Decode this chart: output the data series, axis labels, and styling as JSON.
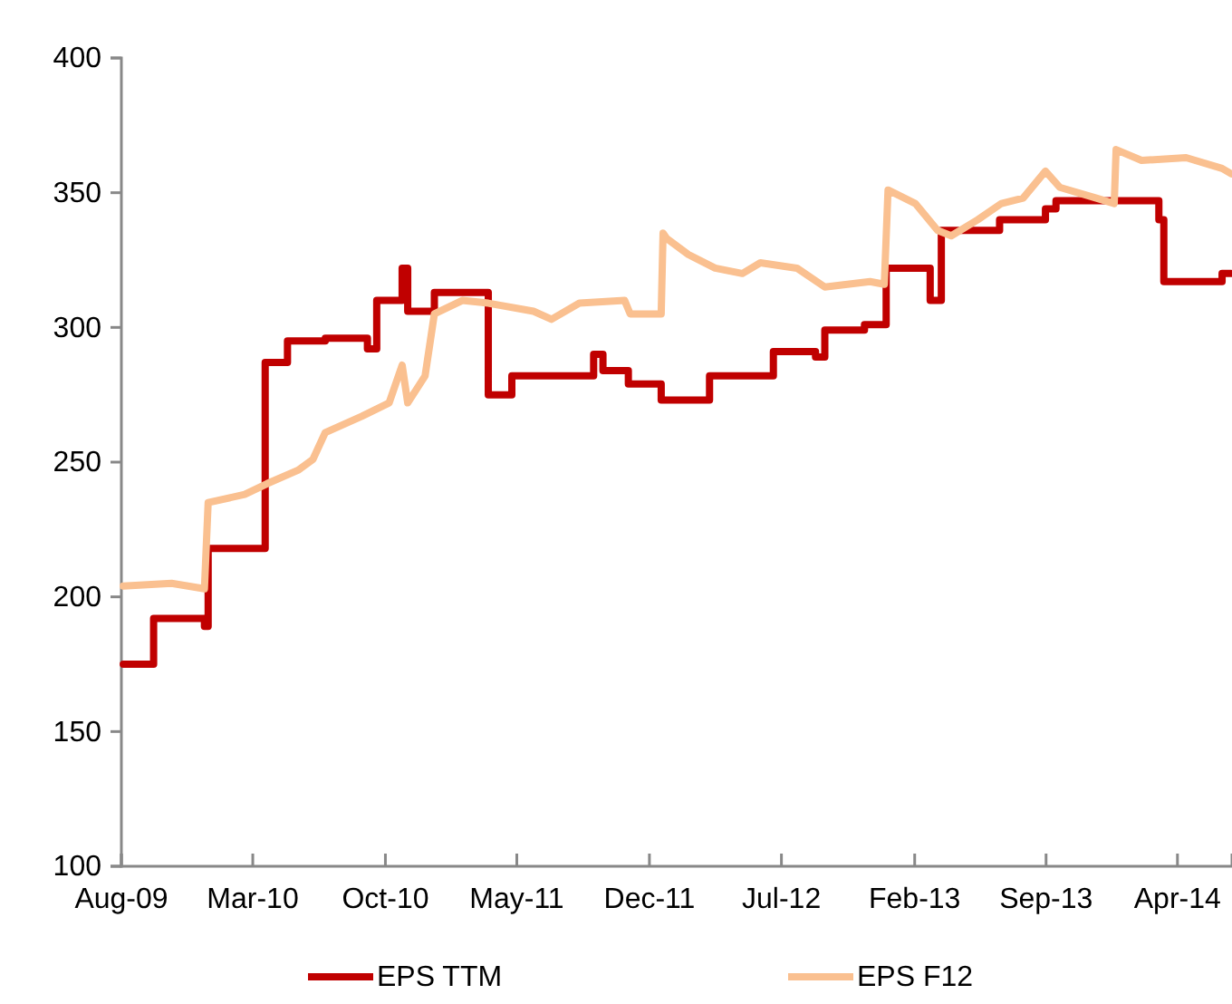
{
  "chart_data": {
    "type": "line",
    "xlim": [
      "2009-08-01",
      "2014-06-28"
    ],
    "ylim": [
      100,
      400
    ],
    "yticks": [
      100,
      150,
      200,
      250,
      300,
      350,
      400
    ],
    "xticks": [
      {
        "value": "2009-08-01",
        "label": "Aug-09"
      },
      {
        "value": "2010-03-01",
        "label": "Mar-10"
      },
      {
        "value": "2010-10-01",
        "label": "Oct-10"
      },
      {
        "value": "2011-05-01",
        "label": "May-11"
      },
      {
        "value": "2011-12-01",
        "label": "Dec-11"
      },
      {
        "value": "2012-07-01",
        "label": "Jul-12"
      },
      {
        "value": "2013-02-01",
        "label": "Feb-13"
      },
      {
        "value": "2013-09-01",
        "label": "Sep-13"
      },
      {
        "value": "2014-04-01",
        "label": "Apr-14"
      }
    ],
    "grid": false,
    "legend": "bottom",
    "line_style": "solid",
    "marker": "none",
    "series": [
      {
        "name": "EPS TTM",
        "type": "step",
        "color": "#c00000",
        "x": [
          "2009-08-04",
          "2009-09-22",
          "2009-12-13",
          "2009-12-19",
          "2010-03-21",
          "2010-04-26",
          "2010-06-26",
          "2010-09-02",
          "2010-09-17",
          "2010-10-28",
          "2010-11-06",
          "2010-12-19",
          "2011-03-16",
          "2011-04-23",
          "2011-09-02",
          "2011-09-17",
          "2011-10-28",
          "2011-12-20",
          "2012-03-07",
          "2012-06-18",
          "2012-08-25",
          "2012-09-09",
          "2012-11-12",
          "2012-12-17",
          "2013-02-26",
          "2013-03-16",
          "2013-06-18",
          "2013-08-31",
          "2013-09-17",
          "2014-03-02",
          "2014-03-10",
          "2014-06-12",
          "2014-06-27"
        ],
        "values": [
          175,
          192,
          189,
          218,
          287,
          295,
          296,
          292,
          310,
          322,
          306,
          313,
          275,
          282,
          290,
          284,
          279,
          273,
          282,
          291,
          289,
          299,
          301,
          322,
          310,
          336,
          340,
          344,
          347,
          340,
          317,
          320,
          320
        ]
      },
      {
        "name": "EPS F12",
        "color": "#fac090",
        "x": [
          "2009-08-04",
          "2009-10-21",
          "2009-12-13",
          "2009-12-19",
          "2010-02-16",
          "2010-03-24",
          "2010-05-13",
          "2010-06-06",
          "2010-06-26",
          "2010-08-24",
          "2010-10-07",
          "2010-10-28",
          "2010-11-06",
          "2010-12-04",
          "2010-12-19",
          "2011-02-02",
          "2011-03-16",
          "2011-05-28",
          "2011-06-26",
          "2011-08-10",
          "2011-10-22",
          "2011-10-31",
          "2011-12-20",
          "2011-12-23",
          "2011-12-29",
          "2012-02-02",
          "2012-03-16",
          "2012-04-29",
          "2012-05-28",
          "2012-07-26",
          "2012-09-09",
          "2012-11-21",
          "2012-12-14",
          "2012-12-20",
          "2013-02-02",
          "2013-03-10",
          "2013-04-01",
          "2013-05-14",
          "2013-06-21",
          "2013-07-26",
          "2013-08-31",
          "2013-09-23",
          "2013-11-21",
          "2013-12-20",
          "2013-12-23",
          "2014-02-02",
          "2014-04-15",
          "2014-06-12",
          "2014-06-27"
        ],
        "values": [
          204,
          205,
          203,
          235,
          238,
          242,
          247,
          251,
          261,
          267,
          272,
          286,
          272,
          282,
          305,
          310,
          309,
          306,
          303,
          309,
          310,
          305,
          305,
          335,
          333,
          327,
          322,
          320,
          324,
          322,
          315,
          317,
          316,
          351,
          346,
          336,
          334,
          340,
          346,
          348,
          358,
          352,
          348,
          346,
          366,
          362,
          363,
          359,
          357
        ]
      }
    ]
  }
}
